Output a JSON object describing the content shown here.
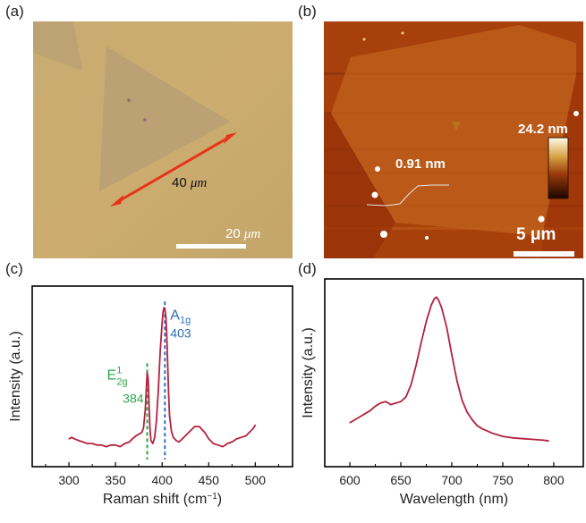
{
  "figure": {
    "panels": {
      "a": {
        "label": "(a)",
        "type": "optical-micrograph",
        "arrow_label_value": "40",
        "arrow_label_unit": "μm",
        "scalebar_value": "20",
        "scalebar_unit": "μm",
        "colors": {
          "background": "#c9a96c",
          "flake": "#b99f70",
          "arrow": "#e8321e",
          "scalebar": "#ffffff"
        }
      },
      "b": {
        "label": "(b)",
        "type": "afm-image",
        "step_height": "0.91 nm",
        "colorbar_max": "24.2 nm",
        "scalebar": "5 μm",
        "colors": {
          "background": "#a8400c",
          "flake": "#c0621a",
          "profile": "#e0e0e0"
        }
      },
      "c": {
        "label": "(c)"
      },
      "d": {
        "label": "(d)"
      }
    }
  },
  "chart_data": [
    {
      "type": "line",
      "panel": "c",
      "title": "",
      "xlabel": "Raman shift (cm",
      "xlabel_sup": "−1",
      "xlabel_end": ")",
      "ylabel": "Intensity (a.u.)",
      "xlim": [
        260.6,
        540
      ],
      "ylim": [
        0,
        1.0
      ],
      "xticks": [
        300,
        350,
        400,
        450,
        500
      ],
      "xtick_labels": [
        "300",
        "350",
        "400",
        "450",
        "500"
      ],
      "minor_xticks": [
        275,
        325,
        375,
        425,
        475,
        525
      ],
      "grid": false,
      "series": [
        {
          "name": "Raman spectrum",
          "color": "#b5213f",
          "x": [
            300,
            303,
            306,
            310,
            315,
            320,
            325,
            330,
            335,
            340,
            345,
            350,
            355,
            360,
            365,
            368,
            372,
            375,
            378,
            380,
            382,
            383,
            384,
            385,
            386,
            387,
            388,
            390,
            392,
            394,
            396,
            398,
            400,
            401,
            402,
            403,
            404,
            405,
            406,
            407,
            408,
            410,
            412,
            415,
            418,
            420,
            425,
            430,
            435,
            440,
            443,
            446,
            450,
            455,
            460,
            465,
            468,
            470,
            475,
            480,
            485,
            490,
            495,
            498,
            500
          ],
          "y": [
            0.13,
            0.14,
            0.13,
            0.12,
            0.11,
            0.1,
            0.1,
            0.09,
            0.09,
            0.08,
            0.09,
            0.09,
            0.08,
            0.1,
            0.11,
            0.13,
            0.15,
            0.16,
            0.17,
            0.2,
            0.32,
            0.45,
            0.56,
            0.52,
            0.35,
            0.2,
            0.12,
            0.1,
            0.14,
            0.25,
            0.45,
            0.7,
            0.88,
            0.95,
            0.98,
            0.97,
            0.92,
            0.8,
            0.62,
            0.42,
            0.28,
            0.18,
            0.14,
            0.12,
            0.11,
            0.12,
            0.15,
            0.18,
            0.21,
            0.21,
            0.19,
            0.17,
            0.13,
            0.1,
            0.09,
            0.08,
            0.09,
            0.1,
            0.11,
            0.13,
            0.14,
            0.15,
            0.18,
            0.2,
            0.22
          ]
        }
      ],
      "annotations": [
        {
          "name": "E2g",
          "x": 384,
          "label_main": "E",
          "label_sup": "1",
          "label_sub": "2g",
          "value": "384",
          "color": "#2aa84a",
          "line_top": 0.62
        },
        {
          "name": "A1g",
          "x": 403,
          "label_main": "A",
          "label_sub": "1g",
          "value": "403",
          "color": "#2e6fb7",
          "line_top": 1.02
        }
      ]
    },
    {
      "type": "line",
      "panel": "d",
      "title": "",
      "xlabel": "Wavelength (nm)",
      "ylabel": "Intensity (a.u.)",
      "xlim": [
        575.4,
        829
      ],
      "ylim": [
        0,
        1.0
      ],
      "xticks": [
        600,
        650,
        700,
        750,
        800
      ],
      "xtick_labels": [
        "600",
        "650",
        "700",
        "750",
        "800"
      ],
      "minor_xticks": [
        625,
        675,
        725,
        775
      ],
      "grid": false,
      "series": [
        {
          "name": "PL spectrum",
          "color": "#b5213f",
          "x": [
            600,
            605,
            610,
            615,
            620,
            625,
            630,
            635,
            638,
            640,
            645,
            650,
            655,
            660,
            665,
            670,
            675,
            680,
            683,
            685,
            687,
            690,
            695,
            700,
            705,
            710,
            715,
            720,
            725,
            730,
            740,
            750,
            760,
            770,
            780,
            790,
            795
          ],
          "y": [
            0.17,
            0.19,
            0.21,
            0.23,
            0.25,
            0.28,
            0.3,
            0.31,
            0.3,
            0.29,
            0.3,
            0.31,
            0.34,
            0.42,
            0.55,
            0.7,
            0.84,
            0.95,
            0.99,
            1.0,
            0.98,
            0.93,
            0.8,
            0.62,
            0.45,
            0.32,
            0.24,
            0.19,
            0.15,
            0.13,
            0.1,
            0.08,
            0.07,
            0.065,
            0.06,
            0.055,
            0.05
          ]
        }
      ]
    }
  ]
}
